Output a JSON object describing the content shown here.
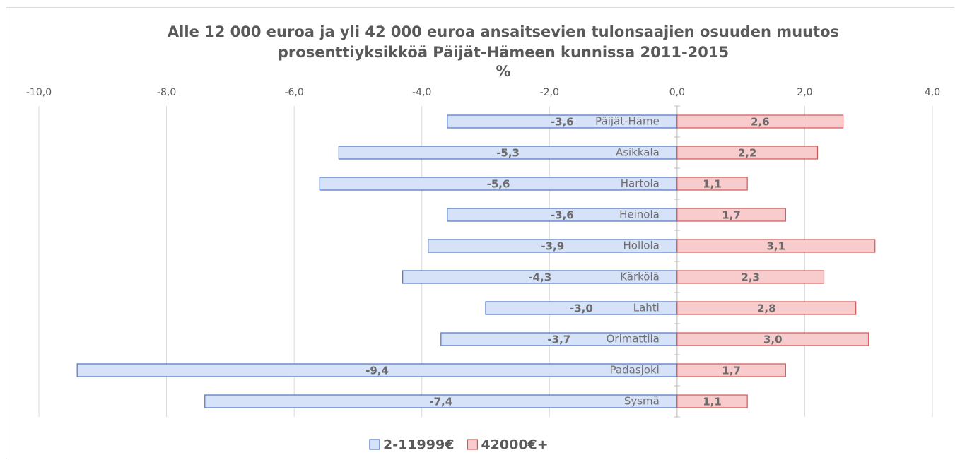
{
  "chart_data": {
    "type": "bar",
    "orientation": "horizontal",
    "title": "Alle 12 000 euroa ja yli 42 000 euroa ansaitsevien tulonsaajien osuuden muutos prosenttiyksikköä Päijät-Hämeen kunnissa 2011-2015",
    "subtitle": "%",
    "categories": [
      "Päijät-Häme",
      "Asikkala",
      "Hartola",
      "Heinola",
      "Hollola",
      "Kärkölä",
      "Lahti",
      "Orimattila",
      "Padasjoki",
      "Sysmä"
    ],
    "series": [
      {
        "name": "2-11999€",
        "color": "#d6e2f7",
        "edge": "#4f76c2",
        "values": [
          -3.6,
          -5.3,
          -5.6,
          -3.6,
          -3.9,
          -4.3,
          -3.0,
          -3.7,
          -9.4,
          -7.4
        ],
        "value_labels": [
          "-3,6",
          "-5,3",
          "-5,6",
          "-3,6",
          "-3,9",
          "-4,3",
          "-3,0",
          "-3,7",
          "-9,4",
          "-7,4"
        ]
      },
      {
        "name": "42000€+",
        "color": "#f8cccc",
        "edge": "#d25656",
        "values": [
          2.6,
          2.2,
          1.1,
          1.7,
          3.1,
          2.3,
          2.8,
          3.0,
          1.7,
          1.1
        ],
        "value_labels": [
          "2,6",
          "2,2",
          "1,1",
          "1,7",
          "3,1",
          "2,3",
          "2,8",
          "3,0",
          "1,7",
          "1,1"
        ]
      }
    ],
    "xlim": [
      -10,
      4
    ],
    "xticks": [
      {
        "value": -10,
        "label": "-10,0"
      },
      {
        "value": -8,
        "label": "-8,0"
      },
      {
        "value": -6,
        "label": "-6,0"
      },
      {
        "value": -4,
        "label": "-4,0"
      },
      {
        "value": -2,
        "label": "-2,0"
      },
      {
        "value": 0,
        "label": "0,0"
      },
      {
        "value": 2,
        "label": "2,0"
      },
      {
        "value": 4,
        "label": "4,0"
      }
    ],
    "grid": true,
    "legend": "bottom"
  }
}
